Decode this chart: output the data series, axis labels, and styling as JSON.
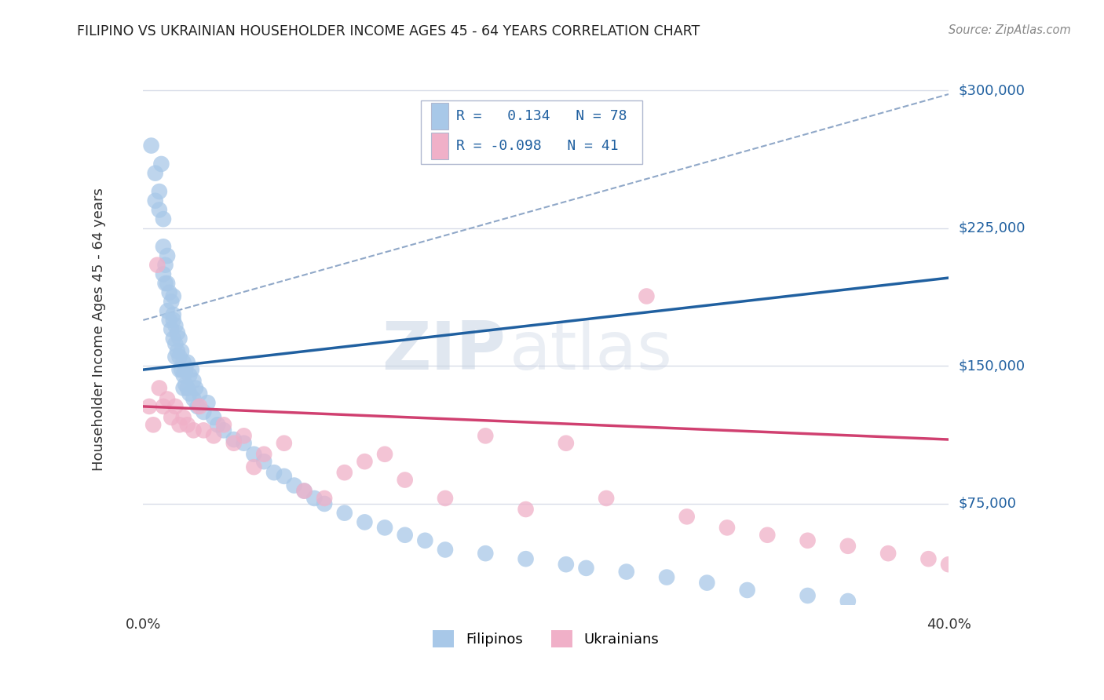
{
  "title": "FILIPINO VS UKRAINIAN HOUSEHOLDER INCOME AGES 45 - 64 YEARS CORRELATION CHART",
  "source": "Source: ZipAtlas.com",
  "ylabel": "Householder Income Ages 45 - 64 years",
  "xmin": 0.0,
  "xmax": 40.0,
  "ymin": 20000,
  "ymax": 320000,
  "yticks": [
    75000,
    150000,
    225000,
    300000
  ],
  "ytick_labels": [
    "$75,000",
    "$150,000",
    "$225,000",
    "$300,000"
  ],
  "watermark_zip": "ZIP",
  "watermark_atlas": "atlas",
  "legend_line1": "R =   0.134   N = 78",
  "legend_line2": "R = -0.098   N = 41",
  "filipino_color": "#a8c8e8",
  "ukrainian_color": "#f0b0c8",
  "trend_filipino_color": "#2060a0",
  "trend_ukrainian_color": "#d04070",
  "dashed_line_color": "#90a8c8",
  "background_color": "#ffffff",
  "grid_color": "#d8dce8",
  "legend_box_color": "#e8eef8",
  "legend_border_color": "#b0b8d0",
  "filipino_x": [
    0.4,
    0.6,
    0.6,
    0.8,
    0.8,
    0.9,
    1.0,
    1.0,
    1.0,
    1.1,
    1.1,
    1.2,
    1.2,
    1.2,
    1.3,
    1.3,
    1.4,
    1.4,
    1.5,
    1.5,
    1.5,
    1.5,
    1.6,
    1.6,
    1.6,
    1.7,
    1.7,
    1.8,
    1.8,
    1.8,
    1.9,
    1.9,
    2.0,
    2.0,
    2.0,
    2.1,
    2.1,
    2.2,
    2.2,
    2.3,
    2.3,
    2.4,
    2.5,
    2.5,
    2.6,
    2.7,
    2.8,
    3.0,
    3.2,
    3.5,
    3.7,
    4.0,
    4.5,
    5.0,
    5.5,
    6.0,
    6.5,
    7.0,
    7.5,
    8.0,
    8.5,
    9.0,
    10.0,
    11.0,
    12.0,
    13.0,
    14.0,
    15.0,
    17.0,
    19.0,
    21.0,
    22.0,
    24.0,
    26.0,
    28.0,
    30.0,
    33.0,
    35.0
  ],
  "filipino_y": [
    270000,
    255000,
    240000,
    245000,
    235000,
    260000,
    230000,
    215000,
    200000,
    195000,
    205000,
    210000,
    195000,
    180000,
    190000,
    175000,
    185000,
    170000,
    175000,
    165000,
    178000,
    188000,
    172000,
    162000,
    155000,
    168000,
    158000,
    165000,
    155000,
    148000,
    158000,
    148000,
    152000,
    145000,
    138000,
    148000,
    140000,
    152000,
    138000,
    145000,
    135000,
    148000,
    142000,
    132000,
    138000,
    128000,
    135000,
    125000,
    130000,
    122000,
    118000,
    115000,
    110000,
    108000,
    102000,
    98000,
    92000,
    90000,
    85000,
    82000,
    78000,
    75000,
    70000,
    65000,
    62000,
    58000,
    55000,
    50000,
    48000,
    45000,
    42000,
    40000,
    38000,
    35000,
    32000,
    28000,
    25000,
    22000
  ],
  "ukrainian_x": [
    0.3,
    0.5,
    0.7,
    0.8,
    1.0,
    1.2,
    1.4,
    1.6,
    1.8,
    2.0,
    2.2,
    2.5,
    2.8,
    3.0,
    3.5,
    4.0,
    4.5,
    5.0,
    5.5,
    6.0,
    7.0,
    8.0,
    9.0,
    10.0,
    11.0,
    12.0,
    13.0,
    15.0,
    17.0,
    19.0,
    21.0,
    23.0,
    25.0,
    27.0,
    29.0,
    31.0,
    33.0,
    35.0,
    37.0,
    39.0,
    40.0
  ],
  "ukrainian_y": [
    128000,
    118000,
    205000,
    138000,
    128000,
    132000,
    122000,
    128000,
    118000,
    122000,
    118000,
    115000,
    128000,
    115000,
    112000,
    118000,
    108000,
    112000,
    95000,
    102000,
    108000,
    82000,
    78000,
    92000,
    98000,
    102000,
    88000,
    78000,
    112000,
    72000,
    108000,
    78000,
    188000,
    68000,
    62000,
    58000,
    55000,
    52000,
    48000,
    45000,
    42000
  ],
  "trend_fil_x0": 0.0,
  "trend_fil_y0": 148000,
  "trend_fil_x1": 40.0,
  "trend_fil_y1": 198000,
  "trend_ukr_x0": 0.0,
  "trend_ukr_y0": 128000,
  "trend_ukr_x1": 40.0,
  "trend_ukr_y1": 110000,
  "dash_x0": 0.0,
  "dash_y0": 175000,
  "dash_x1": 40.0,
  "dash_y1": 298000
}
